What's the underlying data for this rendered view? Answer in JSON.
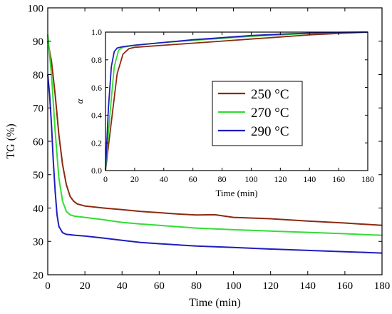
{
  "chart_data": [
    {
      "type": "line",
      "xlabel": "Time (min)",
      "ylabel": "TG (%)",
      "xlim": [
        0,
        180
      ],
      "ylim": [
        20,
        100
      ],
      "x_ticks": [
        0,
        20,
        40,
        60,
        80,
        100,
        120,
        140,
        160,
        180
      ],
      "y_ticks": [
        20,
        30,
        40,
        50,
        60,
        70,
        80,
        90,
        100
      ],
      "grid": false,
      "series": [
        {
          "name": "250 °C",
          "color": "#8B2A10",
          "points": [
            [
              0,
              90
            ],
            [
              2,
              84
            ],
            [
              4,
              74
            ],
            [
              6,
              62
            ],
            [
              8,
              53
            ],
            [
              10,
              47
            ],
            [
              12,
              43.5
            ],
            [
              14,
              42
            ],
            [
              16,
              41.2
            ],
            [
              20,
              40.6
            ],
            [
              30,
              40
            ],
            [
              40,
              39.5
            ],
            [
              50,
              39
            ],
            [
              60,
              38.6
            ],
            [
              70,
              38.2
            ],
            [
              80,
              37.9
            ],
            [
              90,
              38
            ],
            [
              100,
              37.2
            ],
            [
              120,
              36.8
            ],
            [
              140,
              36.1
            ],
            [
              160,
              35.5
            ],
            [
              180,
              34.8
            ]
          ]
        },
        {
          "name": "270 °C",
          "color": "#33DD33",
          "points": [
            [
              0,
              92
            ],
            [
              2,
              80
            ],
            [
              4,
              63
            ],
            [
              6,
              49
            ],
            [
              8,
              42
            ],
            [
              10,
              39
            ],
            [
              12,
              38
            ],
            [
              14,
              37.6
            ],
            [
              20,
              37.2
            ],
            [
              30,
              36.5
            ],
            [
              40,
              35.7
            ],
            [
              50,
              35.2
            ],
            [
              60,
              34.8
            ],
            [
              80,
              34
            ],
            [
              100,
              33.5
            ],
            [
              120,
              33.1
            ],
            [
              140,
              32.7
            ],
            [
              160,
              32.3
            ],
            [
              180,
              31.8
            ]
          ]
        },
        {
          "name": "290 °C",
          "color": "#1E1EBE",
          "points": [
            [
              0,
              80
            ],
            [
              1,
              74
            ],
            [
              2,
              65
            ],
            [
              3,
              54
            ],
            [
              4,
              45
            ],
            [
              5,
              38
            ],
            [
              6,
              34.5
            ],
            [
              8,
              32.6
            ],
            [
              10,
              32.1
            ],
            [
              15,
              31.8
            ],
            [
              20,
              31.6
            ],
            [
              30,
              31
            ],
            [
              40,
              30.3
            ],
            [
              50,
              29.7
            ],
            [
              60,
              29.3
            ],
            [
              80,
              28.6
            ],
            [
              100,
              28.2
            ],
            [
              120,
              27.7
            ],
            [
              140,
              27.3
            ],
            [
              160,
              26.9
            ],
            [
              175,
              26.6
            ],
            [
              180,
              26.5
            ]
          ]
        }
      ]
    },
    {
      "type": "line",
      "xlabel": "Time (min)",
      "ylabel": "α",
      "xlim": [
        0,
        180
      ],
      "ylim": [
        0,
        1.0
      ],
      "x_ticks": [
        0,
        20,
        40,
        60,
        80,
        100,
        120,
        140,
        160,
        180
      ],
      "y_ticks": [
        0.0,
        0.2,
        0.4,
        0.6,
        0.8,
        1.0
      ],
      "legend": "center-right",
      "series": [
        {
          "name": "250 °C",
          "color": "#8B2A10",
          "points": [
            [
              0,
              0
            ],
            [
              4,
              0.35
            ],
            [
              8,
              0.7
            ],
            [
              12,
              0.84
            ],
            [
              16,
              0.88
            ],
            [
              20,
              0.89
            ],
            [
              40,
              0.905
            ],
            [
              60,
              0.92
            ],
            [
              80,
              0.935
            ],
            [
              100,
              0.95
            ],
            [
              120,
              0.965
            ],
            [
              140,
              0.98
            ],
            [
              160,
              0.99
            ],
            [
              170,
              0.995
            ],
            [
              180,
              1.0
            ]
          ]
        },
        {
          "name": "270 °C",
          "color": "#33DD33",
          "points": [
            [
              0,
              0
            ],
            [
              3,
              0.4
            ],
            [
              6,
              0.75
            ],
            [
              9,
              0.87
            ],
            [
              12,
              0.89
            ],
            [
              20,
              0.905
            ],
            [
              40,
              0.925
            ],
            [
              60,
              0.94
            ],
            [
              80,
              0.955
            ],
            [
              100,
              0.97
            ],
            [
              120,
              0.98
            ],
            [
              140,
              0.99
            ],
            [
              160,
              0.997
            ],
            [
              180,
              1.0
            ]
          ]
        },
        {
          "name": "290 °C",
          "color": "#1E1EBE",
          "points": [
            [
              0,
              0
            ],
            [
              2,
              0.45
            ],
            [
              4,
              0.75
            ],
            [
              6,
              0.86
            ],
            [
              8,
              0.885
            ],
            [
              12,
              0.895
            ],
            [
              20,
              0.905
            ],
            [
              40,
              0.925
            ],
            [
              60,
              0.945
            ],
            [
              80,
              0.96
            ],
            [
              100,
              0.975
            ],
            [
              120,
              0.985
            ],
            [
              140,
              0.993
            ],
            [
              160,
              0.998
            ],
            [
              180,
              1.0
            ]
          ]
        }
      ]
    }
  ]
}
